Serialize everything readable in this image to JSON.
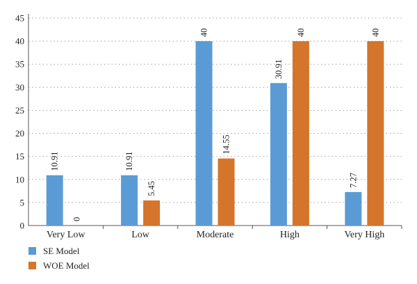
{
  "chart_data": {
    "type": "bar",
    "title": "",
    "xlabel": "",
    "ylabel": "",
    "categories": [
      "Very Low",
      "Low",
      "Moderate",
      "High",
      "Very High"
    ],
    "series": [
      {
        "name": "SE Model",
        "values": [
          10.91,
          10.91,
          40,
          30.91,
          7.27
        ],
        "labels": [
          "10.91",
          "10.91",
          "40",
          "30.91",
          "7.27"
        ],
        "color": "#5b9bd5"
      },
      {
        "name": "WOE Model",
        "values": [
          0,
          5.45,
          14.55,
          40,
          40
        ],
        "labels": [
          "0",
          "5.45",
          "14.55",
          "40",
          "40"
        ],
        "color": "#d4752b"
      }
    ],
    "ylim": [
      0,
      45
    ],
    "yticks": [
      "0",
      "5",
      "10",
      "15",
      "20",
      "25",
      "30",
      "35",
      "40",
      "45"
    ],
    "grid": true,
    "legend_position": "bottom-left"
  }
}
